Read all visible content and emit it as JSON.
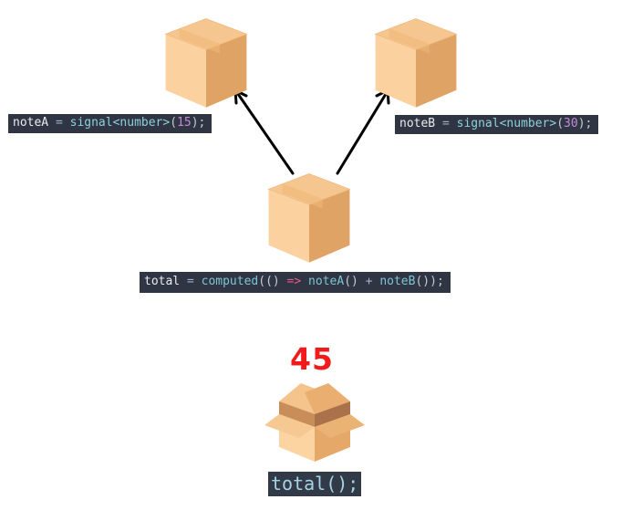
{
  "signals": {
    "note_a": {
      "name": "noteA",
      "eq": " = ",
      "fn": "signal<number>",
      "open": "(",
      "value": "15",
      "close": ");"
    },
    "note_b": {
      "name": "noteB",
      "eq": " = ",
      "fn": "signal<number>",
      "open": "(",
      "value": "30",
      "close": ");"
    }
  },
  "computed": {
    "name": "total",
    "eq": " = ",
    "fn": "computed",
    "open": "((",
    "close_params": ")",
    "arrow": " => ",
    "dep_a": "noteA",
    "paren_a": "()",
    "plus": " + ",
    "dep_b": "noteB",
    "tail": "());"
  },
  "result": {
    "value": "45",
    "call": "total();"
  },
  "colors": {
    "box_light": "#f9c98c",
    "box_side": "#e4a262",
    "result_red": "#f01c1c",
    "code_bg": "#2f3542"
  },
  "icons": [
    "closed-box-icon",
    "closed-box-icon",
    "closed-box-icon",
    "open-box-icon"
  ]
}
